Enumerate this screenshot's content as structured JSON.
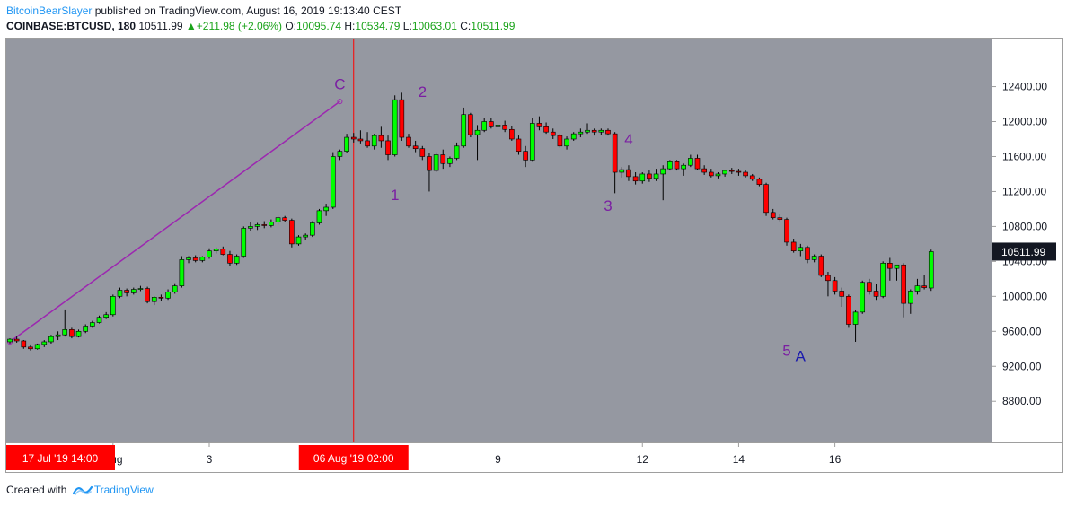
{
  "header": {
    "author": "BitcoinBearSlayer",
    "published": " published on TradingView.com, August 16, 2019 19:13:40 CEST"
  },
  "ticker": {
    "symbol": "COINBASE:BTCUSD, 180",
    "last": "10511.99",
    "change": "+211.98 (+2.06%)",
    "o_label": "O:",
    "o": "10095.74",
    "h_label": "H:",
    "h": "10534.79",
    "l_label": "L:",
    "l": "10063.01",
    "c_label": "C:",
    "c": "10511.99"
  },
  "colors": {
    "background": "#9598a1",
    "up": "#00ff00",
    "down": "#ff0000",
    "wave_label": "#7b1fa2",
    "corrective_label": "#1a1aad",
    "trendline": "#9c27b0",
    "marker": "#ff0000",
    "price_tag": "#131722"
  },
  "chart_data": {
    "type": "candlestick",
    "y_axis": {
      "ticks": [
        "12400.00",
        "12000.00",
        "11600.00",
        "11200.00",
        "10800.00",
        "10400.00",
        "10000.00",
        "9600.00",
        "9200.00",
        "8800.00"
      ],
      "tick_values": [
        12400,
        12000,
        11600,
        11200,
        10800,
        10400,
        10000,
        9600,
        9200,
        8800
      ],
      "range": [
        8330,
        12960
      ],
      "current_price": 10511.99,
      "current_price_label": "10511.99"
    },
    "x_axis": {
      "ticks": [
        {
          "label": "Aug",
          "bar": 15
        },
        {
          "label": "3",
          "bar": 29
        },
        {
          "label": "9",
          "bar": 71
        },
        {
          "label": "12",
          "bar": 92
        },
        {
          "label": "14",
          "bar": 106
        },
        {
          "label": "16",
          "bar": 120
        }
      ],
      "markers": [
        {
          "label": "17 Jul '19    14:00",
          "bar": -0.5
        },
        {
          "label": "06 Aug '19    02:00",
          "bar": 50
        }
      ]
    },
    "vertical_line_bar": 50,
    "trendline": {
      "from": [
        0,
        9480
      ],
      "to": [
        48,
        12230
      ]
    },
    "annotations": [
      {
        "text": "C",
        "bar": 48,
        "price": 12370,
        "style": "wave"
      },
      {
        "text": "1",
        "bar": 56,
        "price": 11100,
        "style": "wave"
      },
      {
        "text": "2",
        "bar": 60,
        "price": 12280,
        "style": "wave"
      },
      {
        "text": "3",
        "bar": 87,
        "price": 10980,
        "style": "wave"
      },
      {
        "text": "4",
        "bar": 90,
        "price": 11740,
        "style": "wave"
      },
      {
        "text": "5",
        "bar": 113,
        "price": 9320,
        "style": "wave"
      },
      {
        "text": "A",
        "bar": 115,
        "price": 9260,
        "style": "corrective"
      }
    ],
    "ohlc": [
      [
        9480,
        9520,
        9460,
        9510
      ],
      [
        9510,
        9540,
        9470,
        9490
      ],
      [
        9490,
        9500,
        9400,
        9420
      ],
      [
        9420,
        9450,
        9380,
        9400
      ],
      [
        9400,
        9460,
        9390,
        9450
      ],
      [
        9450,
        9500,
        9420,
        9480
      ],
      [
        9480,
        9560,
        9460,
        9540
      ],
      [
        9540,
        9600,
        9500,
        9560
      ],
      [
        9560,
        9850,
        9540,
        9620
      ],
      [
        9620,
        9640,
        9520,
        9540
      ],
      [
        9540,
        9620,
        9530,
        9600
      ],
      [
        9600,
        9680,
        9580,
        9660
      ],
      [
        9660,
        9720,
        9640,
        9700
      ],
      [
        9700,
        9780,
        9690,
        9760
      ],
      [
        9760,
        9820,
        9740,
        9790
      ],
      [
        9790,
        10020,
        9770,
        10000
      ],
      [
        10000,
        10100,
        9980,
        10070
      ],
      [
        10070,
        10090,
        10000,
        10040
      ],
      [
        10040,
        10100,
        10020,
        10080
      ],
      [
        10080,
        10120,
        10060,
        10090
      ],
      [
        10090,
        10110,
        9920,
        9940
      ],
      [
        9940,
        10000,
        9900,
        9990
      ],
      [
        9990,
        10020,
        9950,
        9980
      ],
      [
        9980,
        10080,
        9960,
        10050
      ],
      [
        10050,
        10150,
        10030,
        10120
      ],
      [
        10120,
        10460,
        10100,
        10420
      ],
      [
        10420,
        10460,
        10380,
        10440
      ],
      [
        10440,
        10470,
        10390,
        10410
      ],
      [
        10410,
        10460,
        10390,
        10450
      ],
      [
        10450,
        10550,
        10430,
        10520
      ],
      [
        10520,
        10560,
        10490,
        10540
      ],
      [
        10540,
        10570,
        10470,
        10480
      ],
      [
        10480,
        10520,
        10350,
        10380
      ],
      [
        10380,
        10480,
        10360,
        10460
      ],
      [
        10460,
        10800,
        10440,
        10780
      ],
      [
        10780,
        10850,
        10750,
        10800
      ],
      [
        10800,
        10840,
        10760,
        10820
      ],
      [
        10820,
        10860,
        10780,
        10810
      ],
      [
        10810,
        10880,
        10790,
        10850
      ],
      [
        10850,
        10920,
        10820,
        10900
      ],
      [
        10900,
        10920,
        10850,
        10870
      ],
      [
        10870,
        10890,
        10560,
        10600
      ],
      [
        10600,
        10700,
        10580,
        10680
      ],
      [
        10680,
        10720,
        10640,
        10700
      ],
      [
        10700,
        10860,
        10680,
        10840
      ],
      [
        10840,
        11000,
        10820,
        10980
      ],
      [
        10980,
        11060,
        10920,
        11020
      ],
      [
        11020,
        11650,
        11000,
        11600
      ],
      [
        11600,
        11680,
        11560,
        11660
      ],
      [
        11660,
        11860,
        11640,
        11820
      ],
      [
        11820,
        11870,
        11760,
        11800
      ],
      [
        11800,
        11900,
        11750,
        11780
      ],
      [
        11780,
        11880,
        11700,
        11720
      ],
      [
        11720,
        11860,
        11680,
        11840
      ],
      [
        11840,
        11940,
        11700,
        11780
      ],
      [
        11780,
        11840,
        11560,
        11620
      ],
      [
        11620,
        12300,
        11600,
        12250
      ],
      [
        12250,
        12330,
        11780,
        11820
      ],
      [
        11820,
        11860,
        11700,
        11720
      ],
      [
        11720,
        11780,
        11650,
        11690
      ],
      [
        11690,
        11720,
        11560,
        11600
      ],
      [
        11600,
        11640,
        11200,
        11440
      ],
      [
        11440,
        11650,
        11420,
        11620
      ],
      [
        11620,
        11680,
        11460,
        11520
      ],
      [
        11520,
        11600,
        11480,
        11580
      ],
      [
        11580,
        11760,
        11560,
        11720
      ],
      [
        11720,
        12160,
        11700,
        12080
      ],
      [
        12080,
        12100,
        11820,
        11850
      ],
      [
        11850,
        11960,
        11560,
        11900
      ],
      [
        11900,
        12040,
        11880,
        12000
      ],
      [
        12000,
        12040,
        11920,
        11940
      ],
      [
        11940,
        12020,
        11900,
        11960
      ],
      [
        11960,
        12010,
        11880,
        11910
      ],
      [
        11910,
        11950,
        11780,
        11800
      ],
      [
        11800,
        11840,
        11620,
        11660
      ],
      [
        11660,
        11720,
        11480,
        11560
      ],
      [
        11560,
        12040,
        11540,
        11980
      ],
      [
        11980,
        12060,
        11900,
        11940
      ],
      [
        11940,
        11990,
        11860,
        11880
      ],
      [
        11880,
        11920,
        11800,
        11840
      ],
      [
        11840,
        11860,
        11700,
        11720
      ],
      [
        11720,
        11830,
        11680,
        11800
      ],
      [
        11800,
        11880,
        11780,
        11860
      ],
      [
        11860,
        11920,
        11820,
        11880
      ],
      [
        11880,
        11980,
        11860,
        11900
      ],
      [
        11900,
        11920,
        11840,
        11880
      ],
      [
        11880,
        11920,
        11850,
        11900
      ],
      [
        11900,
        11920,
        11840,
        11860
      ],
      [
        11860,
        11880,
        11180,
        11420
      ],
      [
        11420,
        11480,
        11360,
        11450
      ],
      [
        11450,
        11500,
        11320,
        11370
      ],
      [
        11370,
        11420,
        11280,
        11320
      ],
      [
        11320,
        11420,
        11290,
        11400
      ],
      [
        11400,
        11440,
        11310,
        11350
      ],
      [
        11350,
        11460,
        11320,
        11400
      ],
      [
        11400,
        11500,
        11100,
        11460
      ],
      [
        11460,
        11560,
        11440,
        11540
      ],
      [
        11540,
        11560,
        11440,
        11460
      ],
      [
        11460,
        11520,
        11380,
        11500
      ],
      [
        11500,
        11620,
        11480,
        11580
      ],
      [
        11580,
        11620,
        11440,
        11460
      ],
      [
        11460,
        11500,
        11390,
        11420
      ],
      [
        11420,
        11460,
        11360,
        11380
      ],
      [
        11380,
        11420,
        11350,
        11400
      ],
      [
        11400,
        11450,
        11370,
        11440
      ],
      [
        11440,
        11470,
        11400,
        11430
      ],
      [
        11430,
        11460,
        11380,
        11420
      ],
      [
        11420,
        11440,
        11360,
        11380
      ],
      [
        11380,
        11400,
        11320,
        11340
      ],
      [
        11340,
        11360,
        11260,
        11280
      ],
      [
        11280,
        11300,
        10920,
        10960
      ],
      [
        10960,
        11000,
        10880,
        10900
      ],
      [
        10900,
        10940,
        10860,
        10880
      ],
      [
        10880,
        10900,
        10580,
        10620
      ],
      [
        10620,
        10660,
        10500,
        10520
      ],
      [
        10520,
        10600,
        10460,
        10560
      ],
      [
        10560,
        10580,
        10380,
        10420
      ],
      [
        10420,
        10480,
        10390,
        10460
      ],
      [
        10460,
        10480,
        10220,
        10240
      ],
      [
        10240,
        10280,
        10000,
        10180
      ],
      [
        10180,
        10220,
        10020,
        10060
      ],
      [
        10060,
        10100,
        9880,
        10000
      ],
      [
        10000,
        10020,
        9640,
        9680
      ],
      [
        9680,
        9840,
        9480,
        9820
      ],
      [
        9820,
        10180,
        9800,
        10160
      ],
      [
        10160,
        10200,
        10020,
        10060
      ],
      [
        10060,
        10140,
        9960,
        10000
      ],
      [
        10000,
        10400,
        9980,
        10380
      ],
      [
        10380,
        10440,
        10180,
        10320
      ],
      [
        10320,
        10360,
        10180,
        10360
      ],
      [
        10360,
        10380,
        9760,
        9920
      ],
      [
        9920,
        10080,
        9800,
        10060
      ],
      [
        10060,
        10200,
        10020,
        10120
      ],
      [
        10120,
        10240,
        10080,
        10100
      ],
      [
        10095.74,
        10534.79,
        10063.01,
        10511.99
      ]
    ]
  },
  "footer": {
    "created_with": "Created with",
    "brand": "TradingView"
  }
}
